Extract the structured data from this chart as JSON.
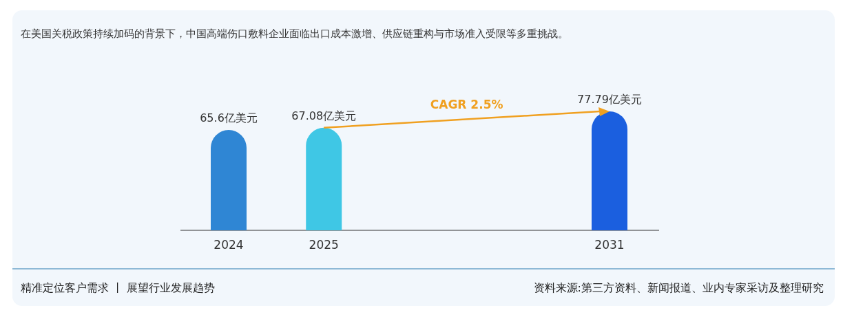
{
  "chart_data": {
    "type": "bar",
    "title": "在美国关税政策持续加码的背景下，中国高端伤口敷料企业面临出口成本激增、供应链重构与市场准入受限等多重挑战。",
    "categories": [
      "2024",
      "2025",
      null,
      null,
      "2031"
    ],
    "values": [
      65.6,
      67.08,
      null,
      null,
      77.79
    ],
    "colors": [
      "#2f86d4",
      "#3fc7e5",
      null,
      null,
      "#1b5fdf"
    ],
    "value_labels": [
      "65.6亿美元",
      "67.08亿美元",
      null,
      null,
      "77.79亿美元"
    ],
    "annotations": [
      "CAGR 2.5%",
      "精准定位客户需求 丨 展望行业发展趋势",
      "资料来源:第三方资料、新闻报道、业内专家采访及整理研究"
    ]
  }
}
